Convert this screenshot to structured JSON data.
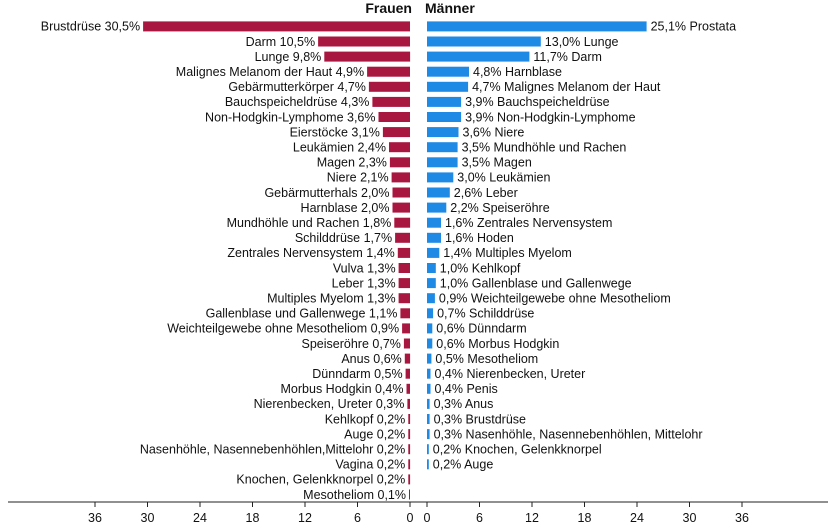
{
  "chart_data": {
    "type": "bar",
    "headers": {
      "left": "Frauen",
      "right": "Männer"
    },
    "colors": {
      "frauen": "#a8173f",
      "maenner": "#1e8ae6"
    },
    "xticks": [
      "36",
      "30",
      "24",
      "18",
      "12",
      "6",
      "0"
    ],
    "xticks_right": [
      "0",
      "6",
      "12",
      "18",
      "24",
      "30",
      "36"
    ],
    "xlim": [
      0,
      36
    ],
    "frauen": [
      {
        "label": "Brustdrüse",
        "value_text": "30,5%",
        "value": 30.5
      },
      {
        "label": "Darm",
        "value_text": "10,5%",
        "value": 10.5
      },
      {
        "label": "Lunge",
        "value_text": "9,8%",
        "value": 9.8
      },
      {
        "label": "Malignes Melanom der Haut",
        "value_text": "4,9%",
        "value": 4.9
      },
      {
        "label": "Gebärmutterkörper",
        "value_text": "4,7%",
        "value": 4.7
      },
      {
        "label": "Bauchspeicheldrüse",
        "value_text": "4,3%",
        "value": 4.3
      },
      {
        "label": "Non-Hodgkin-Lymphome",
        "value_text": "3,6%",
        "value": 3.6
      },
      {
        "label": "Eierstöcke",
        "value_text": "3,1%",
        "value": 3.1
      },
      {
        "label": "Leukämien",
        "value_text": "2,4%",
        "value": 2.4
      },
      {
        "label": "Magen",
        "value_text": "2,3%",
        "value": 2.3
      },
      {
        "label": "Niere",
        "value_text": "2,1%",
        "value": 2.1
      },
      {
        "label": "Gebärmutterhals",
        "value_text": "2,0%",
        "value": 2.0
      },
      {
        "label": "Harnblase",
        "value_text": "2,0%",
        "value": 2.0
      },
      {
        "label": "Mundhöhle und Rachen",
        "value_text": "1,8%",
        "value": 1.8
      },
      {
        "label": "Schilddrüse",
        "value_text": "1,7%",
        "value": 1.7
      },
      {
        "label": "Zentrales Nervensystem",
        "value_text": "1,4%",
        "value": 1.4
      },
      {
        "label": "Vulva",
        "value_text": "1,3%",
        "value": 1.3
      },
      {
        "label": "Leber",
        "value_text": "1,3%",
        "value": 1.3
      },
      {
        "label": "Multiples Myelom",
        "value_text": "1,3%",
        "value": 1.3
      },
      {
        "label": "Gallenblase und Gallenwege",
        "value_text": "1,1%",
        "value": 1.1
      },
      {
        "label": "Weichteilgewebe ohne Mesotheliom",
        "value_text": "0,9%",
        "value": 0.9
      },
      {
        "label": "Speiseröhre",
        "value_text": "0,7%",
        "value": 0.7
      },
      {
        "label": "Anus",
        "value_text": "0,6%",
        "value": 0.6
      },
      {
        "label": "Dünndarm",
        "value_text": "0,5%",
        "value": 0.5
      },
      {
        "label": "Morbus Hodgkin",
        "value_text": "0,4%",
        "value": 0.4
      },
      {
        "label": "Nierenbecken, Ureter",
        "value_text": "0,3%",
        "value": 0.3
      },
      {
        "label": "Kehlkopf",
        "value_text": "0,2%",
        "value": 0.2
      },
      {
        "label": "Auge",
        "value_text": "0,2%",
        "value": 0.2
      },
      {
        "label": "Nasenhöhle, Nasennebenhöhlen,Mittelohr",
        "value_text": "0,2%",
        "value": 0.2
      },
      {
        "label": "Vagina",
        "value_text": "0,2%",
        "value": 0.2
      },
      {
        "label": "Knochen, Gelenkknorpel",
        "value_text": "0,2%",
        "value": 0.2
      },
      {
        "label": "Mesotheliom",
        "value_text": "0,1%",
        "value": 0.1
      }
    ],
    "maenner": [
      {
        "label": "Prostata",
        "value_text": "25,1%",
        "value": 25.1
      },
      {
        "label": "Lunge",
        "value_text": "13,0%",
        "value": 13.0
      },
      {
        "label": "Darm",
        "value_text": "11,7%",
        "value": 11.7
      },
      {
        "label": "Harnblase",
        "value_text": "4,8%",
        "value": 4.8
      },
      {
        "label": "Malignes Melanom der Haut",
        "value_text": "4,7%",
        "value": 4.7
      },
      {
        "label": "Bauchspeicheldrüse",
        "value_text": "3,9%",
        "value": 3.9
      },
      {
        "label": "Non-Hodgkin-Lymphome",
        "value_text": "3,9%",
        "value": 3.9
      },
      {
        "label": "Niere",
        "value_text": "3,6%",
        "value": 3.6
      },
      {
        "label": "Mundhöhle und Rachen",
        "value_text": "3,5%",
        "value": 3.5
      },
      {
        "label": "Magen",
        "value_text": "3,5%",
        "value": 3.5
      },
      {
        "label": "Leukämien",
        "value_text": "3,0%",
        "value": 3.0
      },
      {
        "label": "Leber",
        "value_text": "2,6%",
        "value": 2.6
      },
      {
        "label": "Speiseröhre",
        "value_text": "2,2%",
        "value": 2.2
      },
      {
        "label": "Zentrales Nervensystem",
        "value_text": "1,6%",
        "value": 1.6
      },
      {
        "label": "Hoden",
        "value_text": "1,6%",
        "value": 1.6
      },
      {
        "label": "Multiples Myelom",
        "value_text": "1,4%",
        "value": 1.4
      },
      {
        "label": "Kehlkopf",
        "value_text": "1,0%",
        "value": 1.0
      },
      {
        "label": "Gallenblase und Gallenwege",
        "value_text": "1,0%",
        "value": 1.0
      },
      {
        "label": "Weichteilgewebe ohne Mesotheliom",
        "value_text": "0,9%",
        "value": 0.9
      },
      {
        "label": "Schilddrüse",
        "value_text": "0,7%",
        "value": 0.7
      },
      {
        "label": "Dünndarm",
        "value_text": "0,6%",
        "value": 0.6
      },
      {
        "label": "Morbus Hodgkin",
        "value_text": "0,6%",
        "value": 0.6
      },
      {
        "label": "Mesotheliom",
        "value_text": "0,5%",
        "value": 0.5
      },
      {
        "label": "Nierenbecken, Ureter",
        "value_text": "0,4%",
        "value": 0.4
      },
      {
        "label": "Penis",
        "value_text": "0,4%",
        "value": 0.4
      },
      {
        "label": "Anus",
        "value_text": "0,3%",
        "value": 0.3
      },
      {
        "label": "Brustdrüse",
        "value_text": "0,3%",
        "value": 0.3
      },
      {
        "label": "Nasenhöhle, Nasennebenhöhlen, Mittelohr",
        "value_text": "0,3%",
        "value": 0.3
      },
      {
        "label": "Knochen, Gelenkknorpel",
        "value_text": "0,2%",
        "value": 0.2
      },
      {
        "label": "Auge",
        "value_text": "0,2%",
        "value": 0.2
      }
    ]
  }
}
